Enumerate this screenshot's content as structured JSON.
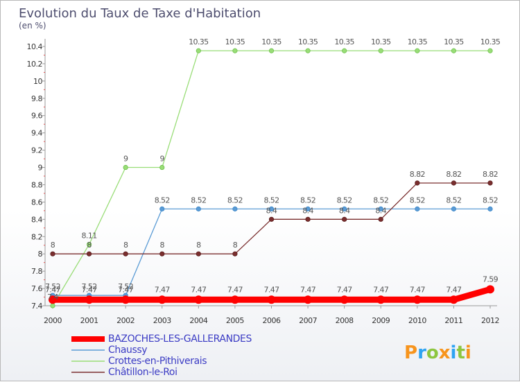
{
  "chart_data": {
    "type": "line",
    "title": "Evolution du Taux de Taxe d'Habitation",
    "ylabel": "(en %)",
    "xlabel": "",
    "x": [
      "2000",
      "2001",
      "2002",
      "2003",
      "2004",
      "2005",
      "2006",
      "2007",
      "2008",
      "2009",
      "2010",
      "2011",
      "2012"
    ],
    "ylim": [
      7.4,
      10.4
    ],
    "yticks": [
      "7.4",
      "7.6",
      "7.8",
      "8",
      "8.2",
      "8.4",
      "8.6",
      "8.8",
      "9",
      "9.2",
      "9.4",
      "9.6",
      "9.8",
      "10",
      "10.2",
      "10.4"
    ],
    "grid": false,
    "legend_position": "bottom-left",
    "series": [
      {
        "name": "BAZOCHES-LES-GALLERANDES",
        "color": "#ff0000",
        "values": [
          7.47,
          7.47,
          7.47,
          7.47,
          7.47,
          7.47,
          7.47,
          7.47,
          7.47,
          7.47,
          7.47,
          7.47,
          7.59
        ],
        "labels": [
          "7.47",
          "7.47",
          "7.47",
          "7.47",
          "7.47",
          "7.47",
          "7.47",
          "7.47",
          "7.47",
          "7.47",
          "7.47",
          "7.47",
          "7.59"
        ]
      },
      {
        "name": "Chaussy",
        "color": "#5a9bd5",
        "values": [
          7.52,
          7.52,
          7.52,
          8.52,
          8.52,
          8.52,
          8.52,
          8.52,
          8.52,
          8.52,
          8.52,
          8.52,
          8.52
        ],
        "labels": [
          "7.52",
          "7.52",
          "7.52",
          "8.52",
          "8.52",
          "8.52",
          "8.52",
          "8.52",
          "8.52",
          "8.52",
          "8.52",
          "8.52",
          "8.52"
        ]
      },
      {
        "name": "Crottes-en-Pithiverais",
        "color": "#99dd77",
        "values": [
          7.4,
          8.11,
          9,
          9,
          10.35,
          10.35,
          10.35,
          10.35,
          10.35,
          10.35,
          10.35,
          10.35,
          10.35
        ],
        "labels": [
          "7.4",
          "8.11",
          "9",
          "9",
          "10.35",
          "10.35",
          "10.35",
          "10.35",
          "10.35",
          "10.35",
          "10.35",
          "10.35",
          "10.35"
        ]
      },
      {
        "name": "Châtillon-le-Roi",
        "color": "#7a2e2e",
        "values": [
          8,
          8,
          8,
          8,
          8,
          8,
          8.4,
          8.4,
          8.4,
          8.4,
          8.82,
          8.82,
          8.82
        ],
        "labels": [
          "8",
          "8",
          "8",
          "8",
          "8",
          "8",
          "8.4",
          "8.4",
          "8.4",
          "8.4",
          "8.82",
          "8.82",
          "8.82"
        ]
      }
    ]
  },
  "brand": {
    "text": "Proxiti",
    "letters": [
      "P",
      "r",
      "o",
      "x",
      "i",
      "t",
      "i"
    ],
    "letter_colors": [
      "#f7941d",
      "#2ea3f2",
      "#8dc63f",
      "#f7941d",
      "#2ea3f2",
      "#8dc63f",
      "#f7941d"
    ]
  }
}
